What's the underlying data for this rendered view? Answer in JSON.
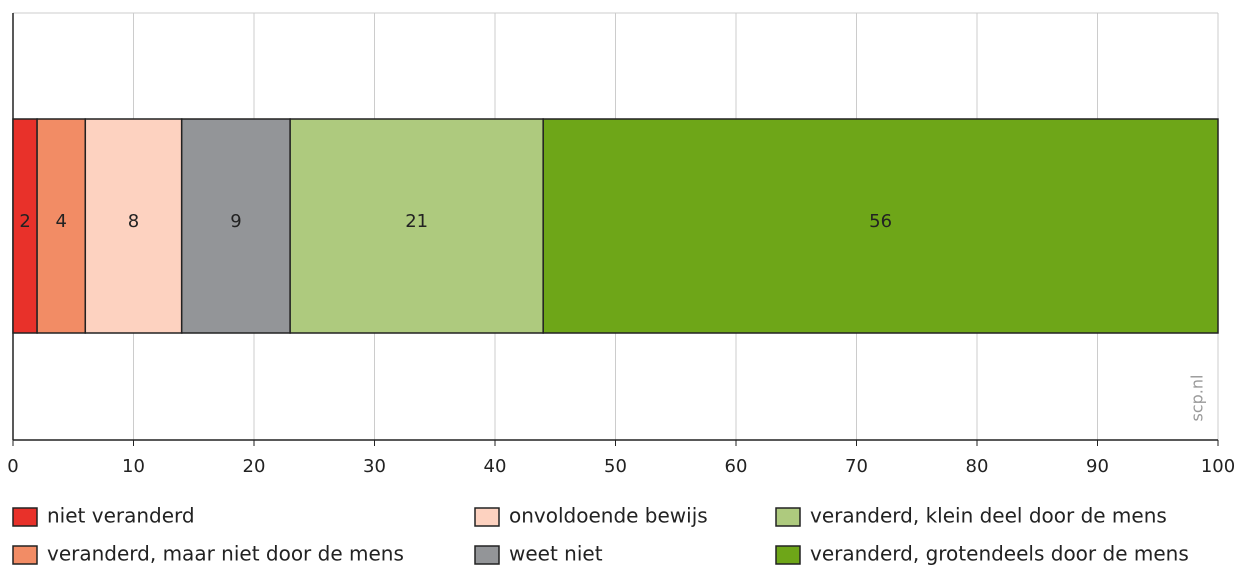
{
  "chart_data": {
    "type": "stacked-barh",
    "categories": [
      null
    ],
    "series": [
      {
        "name": "niet veranderd",
        "color": "#e8312a",
        "values": [
          2
        ]
      },
      {
        "name": "veranderd, maar niet door de mens",
        "color": "#f28c65",
        "values": [
          4
        ]
      },
      {
        "name": "onvoldoende bewijs",
        "color": "#fdd2c0",
        "values": [
          8
        ]
      },
      {
        "name": "weet niet",
        "color": "#939598",
        "values": [
          9
        ]
      },
      {
        "name": "veranderd, klein deel door de mens",
        "color": "#aeca7e",
        "values": [
          21
        ]
      },
      {
        "name": "veranderd, grotendeels door de mens",
        "color": "#6ea618",
        "values": [
          56
        ]
      }
    ],
    "xlim": [
      0,
      100
    ],
    "xticks": [
      0,
      10,
      20,
      30,
      40,
      50,
      60,
      70,
      80,
      90,
      100
    ],
    "grid": true,
    "legend": "bottom",
    "watermark": "scp.nl"
  }
}
